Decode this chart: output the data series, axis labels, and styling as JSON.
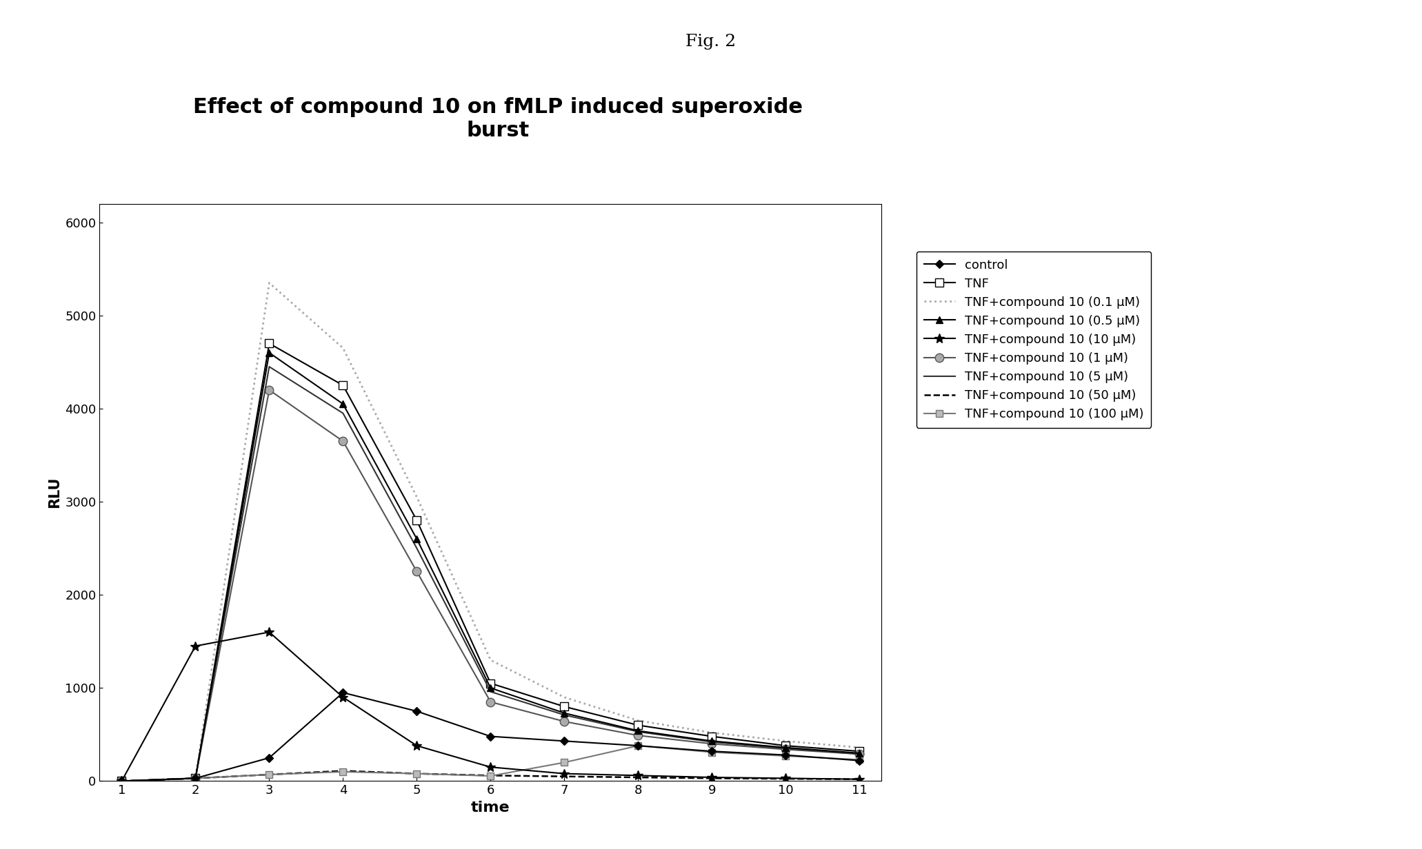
{
  "title_fig": "Fig. 2",
  "title_main": "Effect of compound 10 on fMLP induced superoxide\nburst",
  "xlabel": "time",
  "ylabel": "RLU",
  "ylim": [
    0,
    6200
  ],
  "yticks": [
    0,
    1000,
    2000,
    3000,
    4000,
    5000,
    6000
  ],
  "xticks": [
    1,
    2,
    3,
    4,
    5,
    6,
    7,
    8,
    9,
    10,
    11
  ],
  "x": [
    1,
    2,
    3,
    4,
    5,
    6,
    7,
    8,
    9,
    10,
    11
  ],
  "series": [
    {
      "label": "control",
      "y": [
        0,
        30,
        250,
        950,
        750,
        480,
        430,
        380,
        320,
        280,
        220
      ],
      "color": "#000000",
      "marker": "D",
      "markersize": 6,
      "linestyle": "-",
      "linewidth": 1.5,
      "markerfacecolor": "#000000",
      "zorder": 5
    },
    {
      "label": "TNF",
      "y": [
        0,
        30,
        4700,
        4250,
        2800,
        1050,
        800,
        600,
        480,
        380,
        320
      ],
      "color": "#000000",
      "marker": "s",
      "markersize": 8,
      "linestyle": "-",
      "linewidth": 1.5,
      "markerfacecolor": "#ffffff",
      "zorder": 4
    },
    {
      "label": "TNF+compound 10 (0.1 μM)",
      "y": [
        0,
        30,
        5350,
        4650,
        3050,
        1300,
        900,
        650,
        520,
        430,
        360
      ],
      "color": "#aaaaaa",
      "marker": "None",
      "markersize": 0,
      "linestyle": ":",
      "linewidth": 2.0,
      "markerfacecolor": "#aaaaaa",
      "zorder": 3
    },
    {
      "label": "TNF+compound 10 (0.5 μM)",
      "y": [
        0,
        30,
        4600,
        4050,
        2600,
        1000,
        730,
        540,
        430,
        360,
        300
      ],
      "color": "#000000",
      "marker": "^",
      "markersize": 7,
      "linestyle": "-",
      "linewidth": 1.5,
      "markerfacecolor": "#000000",
      "zorder": 5
    },
    {
      "label": "TNF+compound 10 (10 μM)",
      "y": [
        0,
        1450,
        1600,
        900,
        380,
        150,
        80,
        60,
        40,
        30,
        20
      ],
      "color": "#000000",
      "marker": "*",
      "markersize": 10,
      "linestyle": "-",
      "linewidth": 1.5,
      "markerfacecolor": "#000000",
      "zorder": 5
    },
    {
      "label": "TNF+compound 10 (1 μM)",
      "y": [
        0,
        30,
        4200,
        3650,
        2250,
        850,
        640,
        490,
        400,
        340,
        290
      ],
      "color": "#555555",
      "marker": "o",
      "markersize": 9,
      "linestyle": "-",
      "linewidth": 1.5,
      "markerfacecolor": "#aaaaaa",
      "zorder": 4
    },
    {
      "label": "TNF+compound 10 (5 μM)",
      "y": [
        0,
        30,
        4450,
        3950,
        2500,
        960,
        710,
        530,
        420,
        350,
        290
      ],
      "color": "#333333",
      "marker": "None",
      "markersize": 0,
      "linestyle": "-",
      "linewidth": 1.5,
      "markerfacecolor": "#333333",
      "zorder": 4
    },
    {
      "label": "TNF+compound 10 (50 μM)",
      "y": [
        0,
        30,
        70,
        110,
        80,
        60,
        50,
        40,
        30,
        25,
        20
      ],
      "color": "#000000",
      "marker": "None",
      "markersize": 0,
      "linestyle": "--",
      "linewidth": 1.8,
      "markerfacecolor": "#000000",
      "zorder": 3
    },
    {
      "label": "TNF+compound 10 (100 μM)",
      "y": [
        0,
        30,
        70,
        100,
        80,
        55,
        200,
        380,
        310,
        270,
        230
      ],
      "color": "#777777",
      "marker": "s",
      "markersize": 7,
      "linestyle": "-",
      "linewidth": 1.5,
      "markerfacecolor": "#bbbbbb",
      "zorder": 4
    }
  ]
}
